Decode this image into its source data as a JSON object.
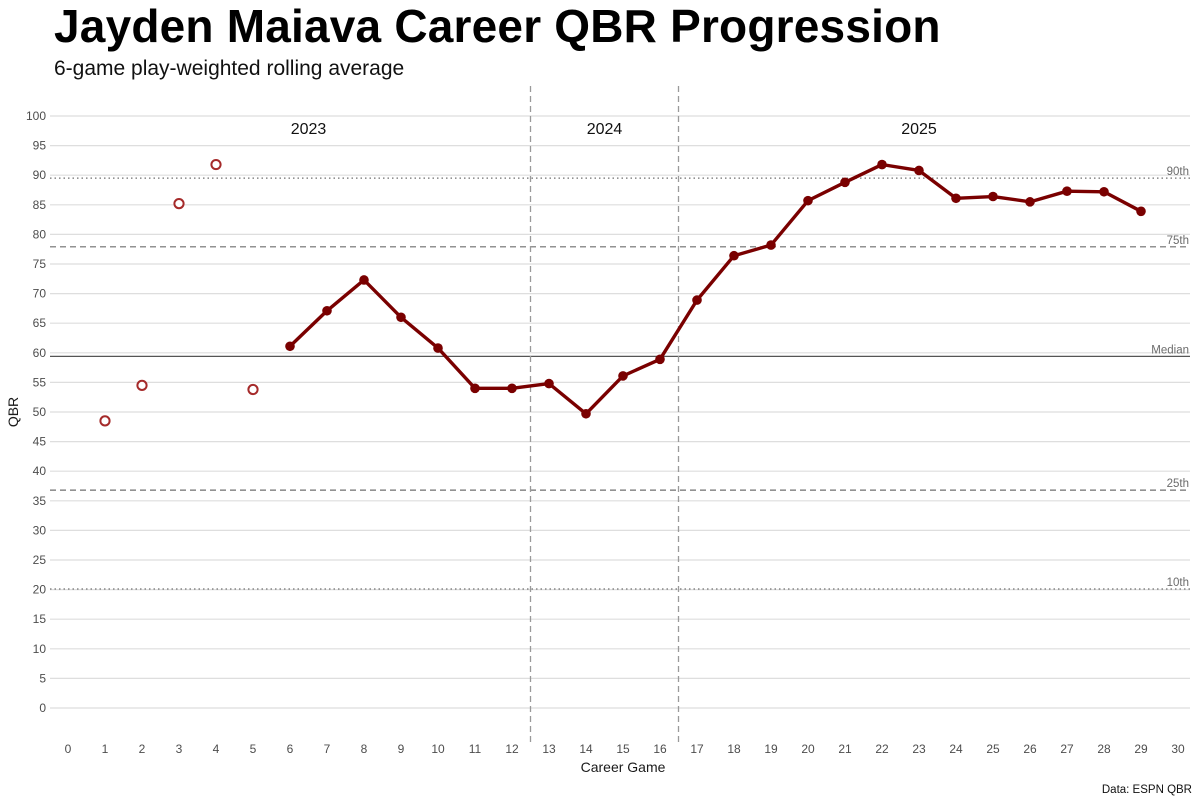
{
  "title": "Jayden Maiava Career QBR Progression",
  "subtitle": "6-game play-weighted rolling average",
  "caption": "Data: ESPN QBR",
  "colors": {
    "line": "#7a0000",
    "open_point": "#a52a2a",
    "gridline": "#dedede",
    "reference": "#6f6f6f",
    "divider": "#9a9a9a",
    "median": "#555555"
  },
  "chart_data": {
    "type": "line",
    "title": "Jayden Maiava Career QBR Progression",
    "subtitle": "6-game play-weighted rolling average",
    "xlabel": "Career Game",
    "ylabel": "QBR",
    "xlim": [
      0,
      30
    ],
    "ylim": [
      0,
      100
    ],
    "x_ticks": [
      0,
      1,
      2,
      3,
      4,
      5,
      6,
      7,
      8,
      9,
      10,
      11,
      12,
      13,
      14,
      15,
      16,
      17,
      18,
      19,
      20,
      21,
      22,
      23,
      24,
      25,
      26,
      27,
      28,
      29,
      30
    ],
    "y_ticks": [
      0,
      5,
      10,
      15,
      20,
      25,
      30,
      35,
      40,
      45,
      50,
      55,
      60,
      65,
      70,
      75,
      80,
      85,
      90,
      95,
      100
    ],
    "grid": true,
    "series": [
      {
        "style": "open-circles",
        "x": [
          1,
          2,
          3,
          4,
          5
        ],
        "y": [
          48.5,
          54.5,
          85.2,
          91.8,
          53.8
        ]
      },
      {
        "style": "line-with-filled-points",
        "x": [
          6,
          7,
          8,
          9,
          10,
          11,
          12,
          13,
          14,
          15,
          16,
          17,
          18,
          19,
          20,
          21,
          22,
          23,
          24,
          25,
          26,
          27,
          28,
          29
        ],
        "y": [
          61.1,
          67.1,
          72.3,
          66.0,
          60.8,
          54.0,
          54.0,
          54.8,
          49.7,
          56.1,
          58.9,
          68.9,
          76.4,
          78.2,
          85.7,
          88.8,
          91.8,
          90.8,
          86.1,
          86.4,
          85.5,
          87.3,
          87.2,
          83.9
        ]
      }
    ],
    "reference_lines": [
      {
        "label": "90th",
        "y": 89.5,
        "style": "dotted"
      },
      {
        "label": "75th",
        "y": 77.9,
        "style": "dashed"
      },
      {
        "label": "Median",
        "y": 59.4,
        "style": "solid"
      },
      {
        "label": "25th",
        "y": 36.8,
        "style": "dashed"
      },
      {
        "label": "10th",
        "y": 20.1,
        "style": "dotted"
      }
    ],
    "season_dividers": [
      12.5,
      16.5
    ],
    "season_labels": [
      {
        "label": "2023",
        "x": 6.5
      },
      {
        "label": "2024",
        "x": 14.5
      },
      {
        "label": "2025",
        "x": 23
      }
    ],
    "season_label_y": 98
  }
}
